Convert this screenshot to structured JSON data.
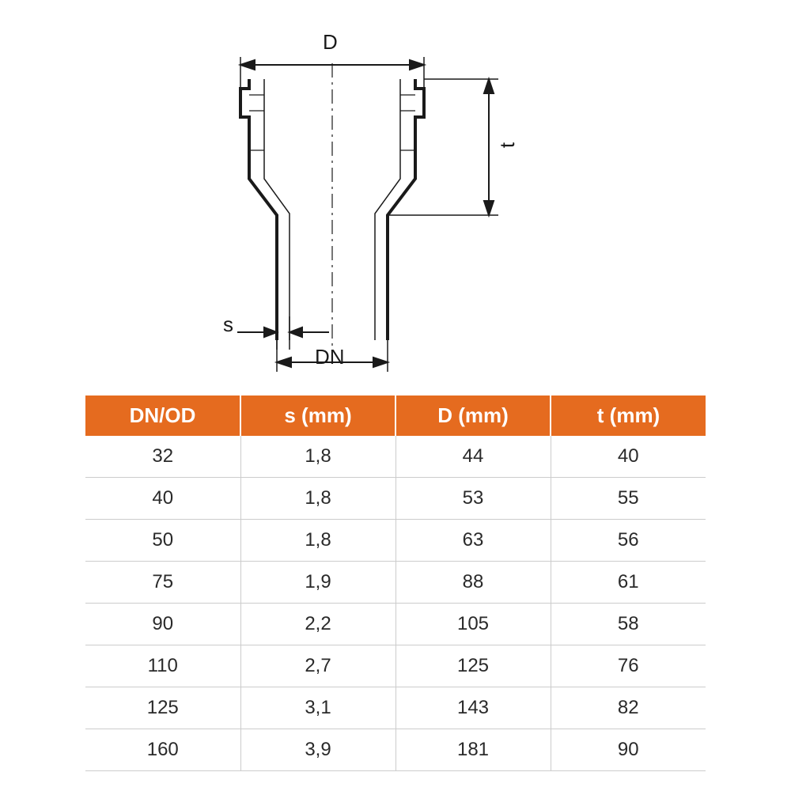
{
  "diagram": {
    "labels": {
      "D": "D",
      "t": "t",
      "s": "s",
      "DN": "DN"
    },
    "stroke_color": "#1a1a1a",
    "stroke_width_main": 4,
    "stroke_width_thin": 1.5,
    "stroke_width_dim": 2
  },
  "table": {
    "header_bg": "#e56b1f",
    "header_color": "#ffffff",
    "row_border": "#cccccc",
    "columns": [
      "DN/OD",
      "s (mm)",
      "D (mm)",
      "t (mm)"
    ],
    "rows": [
      [
        "32",
        "1,8",
        "44",
        "40"
      ],
      [
        "40",
        "1,8",
        "53",
        "55"
      ],
      [
        "50",
        "1,8",
        "63",
        "56"
      ],
      [
        "75",
        "1,9",
        "88",
        "61"
      ],
      [
        "90",
        "2,2",
        "105",
        "58"
      ],
      [
        "110",
        "2,7",
        "125",
        "76"
      ],
      [
        "125",
        "3,1",
        "143",
        "82"
      ],
      [
        "160",
        "3,9",
        "181",
        "90"
      ]
    ],
    "col_widths": [
      "25%",
      "25%",
      "25%",
      "25%"
    ]
  }
}
